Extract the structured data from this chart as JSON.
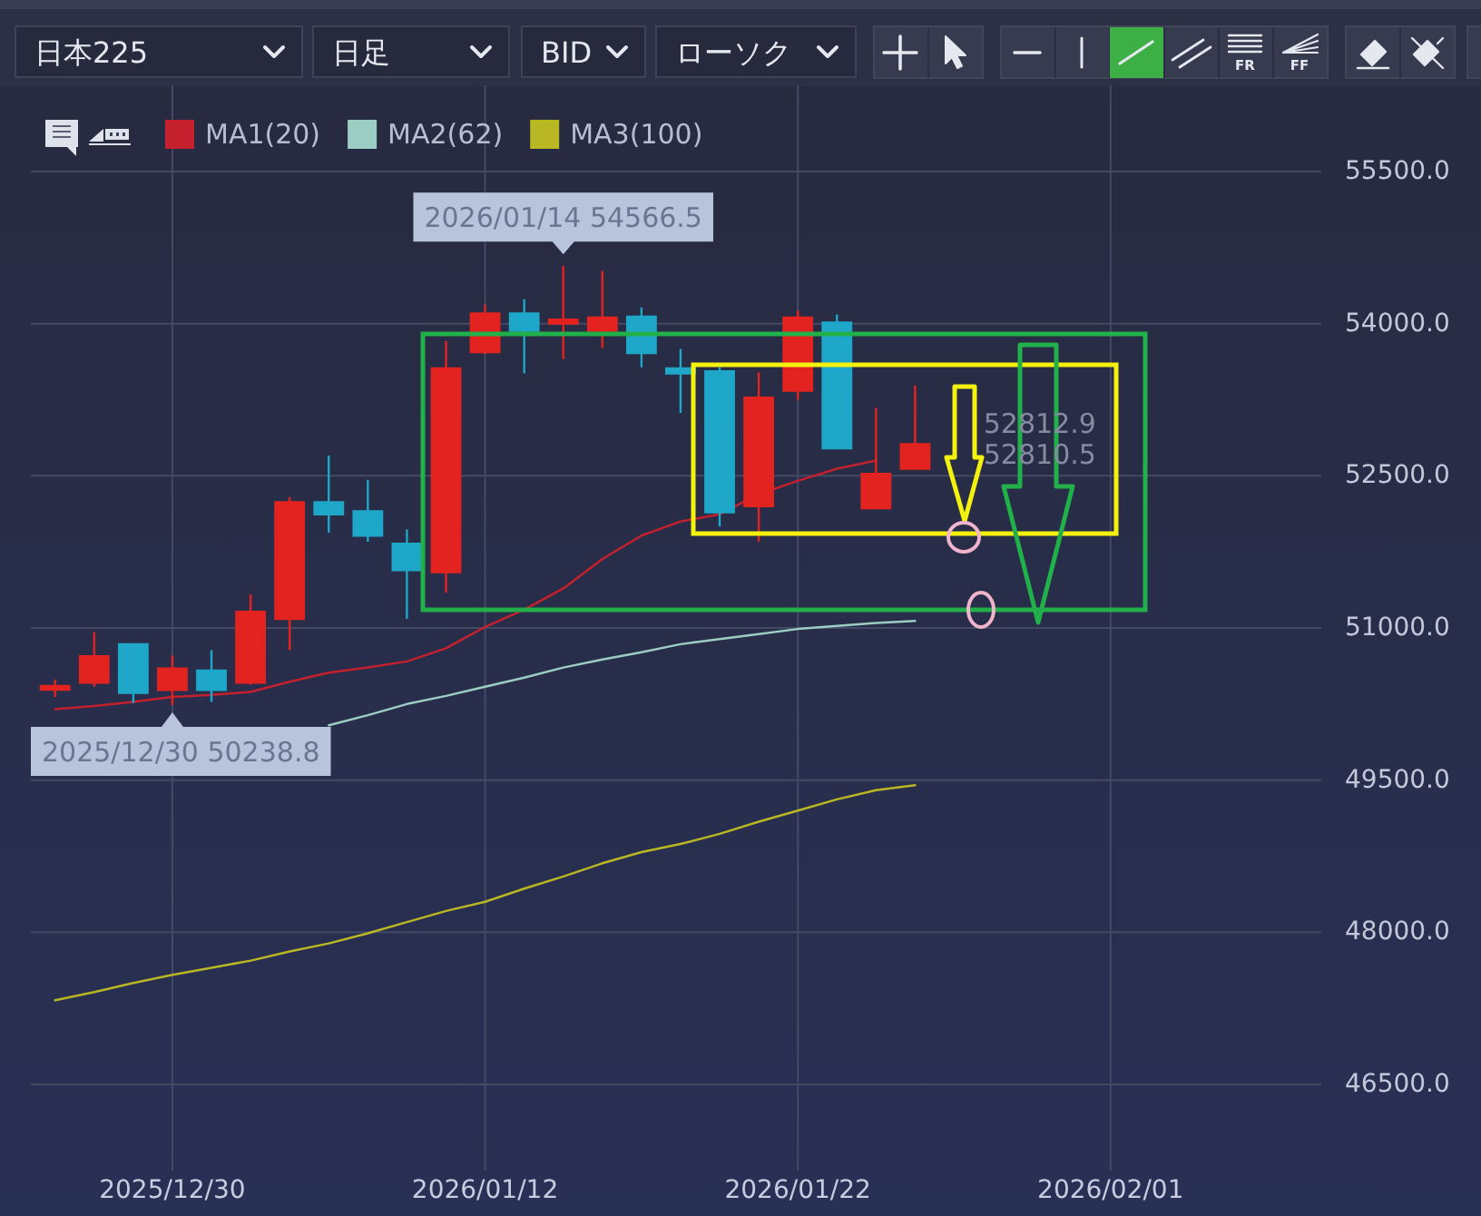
{
  "chart_data": {
    "type": "candlestick",
    "categories": [
      null,
      null,
      null,
      "2025/12/30",
      null,
      null,
      null,
      null,
      null,
      null,
      null,
      "2026/01/12",
      null,
      null,
      null,
      null,
      null,
      null,
      null,
      "2026/01/22",
      null,
      null,
      null,
      null,
      null,
      null,
      null,
      "2026/02/01",
      null,
      null,
      null,
      null,
      null
    ],
    "ohlc": [
      [
        50400,
        50490,
        50320,
        50420
      ],
      [
        50460,
        50960,
        50420,
        50720
      ],
      [
        50840,
        50840,
        50260,
        50360
      ],
      [
        50390,
        50730,
        50238.8,
        50600
      ],
      [
        50580,
        50780,
        50270,
        50390
      ],
      [
        50460,
        51330,
        50440,
        51160
      ],
      [
        51090,
        52290,
        50780,
        52240
      ],
      [
        52240,
        52700,
        51940,
        52120
      ],
      [
        52150,
        52460,
        51850,
        51910
      ],
      [
        51830,
        51970,
        51090,
        51570
      ],
      [
        51550,
        53830,
        51350,
        53560
      ],
      [
        53720,
        54190,
        53700,
        54100
      ],
      [
        54100,
        54240,
        53510,
        53930
      ],
      [
        54000,
        54566.5,
        53650,
        54040
      ],
      [
        53930,
        54520,
        53760,
        54060
      ],
      [
        54070,
        54160,
        53570,
        53710
      ],
      [
        53560,
        53750,
        53120,
        53510
      ],
      [
        53530,
        53570,
        52000,
        52140
      ],
      [
        52200,
        53520,
        51850,
        53270
      ],
      [
        53340,
        54130,
        53250,
        54060
      ],
      [
        54010,
        54090,
        52770,
        52770
      ],
      [
        52180,
        53170,
        52170,
        52520
      ],
      [
        52570,
        53390,
        52560,
        52812.9
      ],
      null,
      null,
      null,
      null,
      null,
      null,
      null,
      null,
      null,
      null
    ],
    "colors": [
      "#e3231f",
      "#e3231f",
      "#1ea7c9",
      "#e3231f",
      "#1ea7c9",
      "#e3231f",
      "#e3231f",
      "#1ea7c9",
      "#1ea7c9",
      "#1ea7c9",
      "#e3231f",
      "#e3231f",
      "#1ea7c9",
      "#e3231f",
      "#e3231f",
      "#1ea7c9",
      "#1ea7c9",
      "#1ea7c9",
      "#e3231f",
      "#e3231f",
      "#1ea7c9",
      "#e3231f",
      "#e3231f",
      null,
      null,
      null,
      null,
      null,
      null,
      null,
      null,
      null,
      null
    ],
    "series": [
      {
        "name": "MA1(20)",
        "type": "line",
        "color": "#c4202e",
        "values": [
          50200,
          50230,
          50270,
          50320,
          50340,
          50370,
          50470,
          50560,
          50610,
          50670,
          50800,
          51010,
          51180,
          51390,
          51680,
          51910,
          52050,
          52120,
          52320,
          52450,
          52570,
          52650,
          null,
          null,
          null,
          null,
          null,
          null,
          null,
          null,
          null,
          null,
          null
        ]
      },
      {
        "name": "MA2(62)",
        "type": "line",
        "color": "#9ccdc2",
        "values": [
          null,
          null,
          null,
          null,
          null,
          null,
          null,
          50040,
          50140,
          50250,
          50330,
          50420,
          50510,
          50610,
          50690,
          50760,
          50840,
          50890,
          50940,
          50990,
          51020,
          51050,
          51070,
          null,
          null,
          null,
          null,
          null,
          null,
          null,
          null,
          null,
          null
        ]
      },
      {
        "name": "MA3(100)",
        "type": "line",
        "color": "#bab724",
        "values": [
          47330,
          47410,
          47500,
          47580,
          47650,
          47720,
          47810,
          47890,
          47990,
          48100,
          48210,
          48300,
          48430,
          48550,
          48680,
          48790,
          48870,
          48970,
          49090,
          49200,
          49310,
          49400,
          49450,
          null,
          null,
          null,
          null,
          null,
          null,
          null,
          null,
          null,
          null
        ]
      }
    ],
    "ylim": [
      45650,
      56350
    ],
    "yticks": [
      {
        "value": 46500,
        "label": "46500.0"
      },
      {
        "value": 48000,
        "label": "48000.0"
      },
      {
        "value": 49500,
        "label": "49500.0"
      },
      {
        "value": 51000,
        "label": "51000.0"
      },
      {
        "value": 52500,
        "label": "52500.0"
      },
      {
        "value": 54000,
        "label": "54000.0"
      },
      {
        "value": 55500,
        "label": "55500.0"
      }
    ],
    "grid": true,
    "legend": "top left",
    "annotations": [
      {
        "text": "2026/01/14 54566.5",
        "y": 54566.5
      },
      {
        "text": "2025/12/30 50238.8",
        "x": "2025/12/30",
        "y": 50238.8
      },
      "日本225",
      "日足",
      "BID",
      "ローソク",
      "FR",
      "FF",
      "52812.9",
      "52810.5"
    ]
  }
}
